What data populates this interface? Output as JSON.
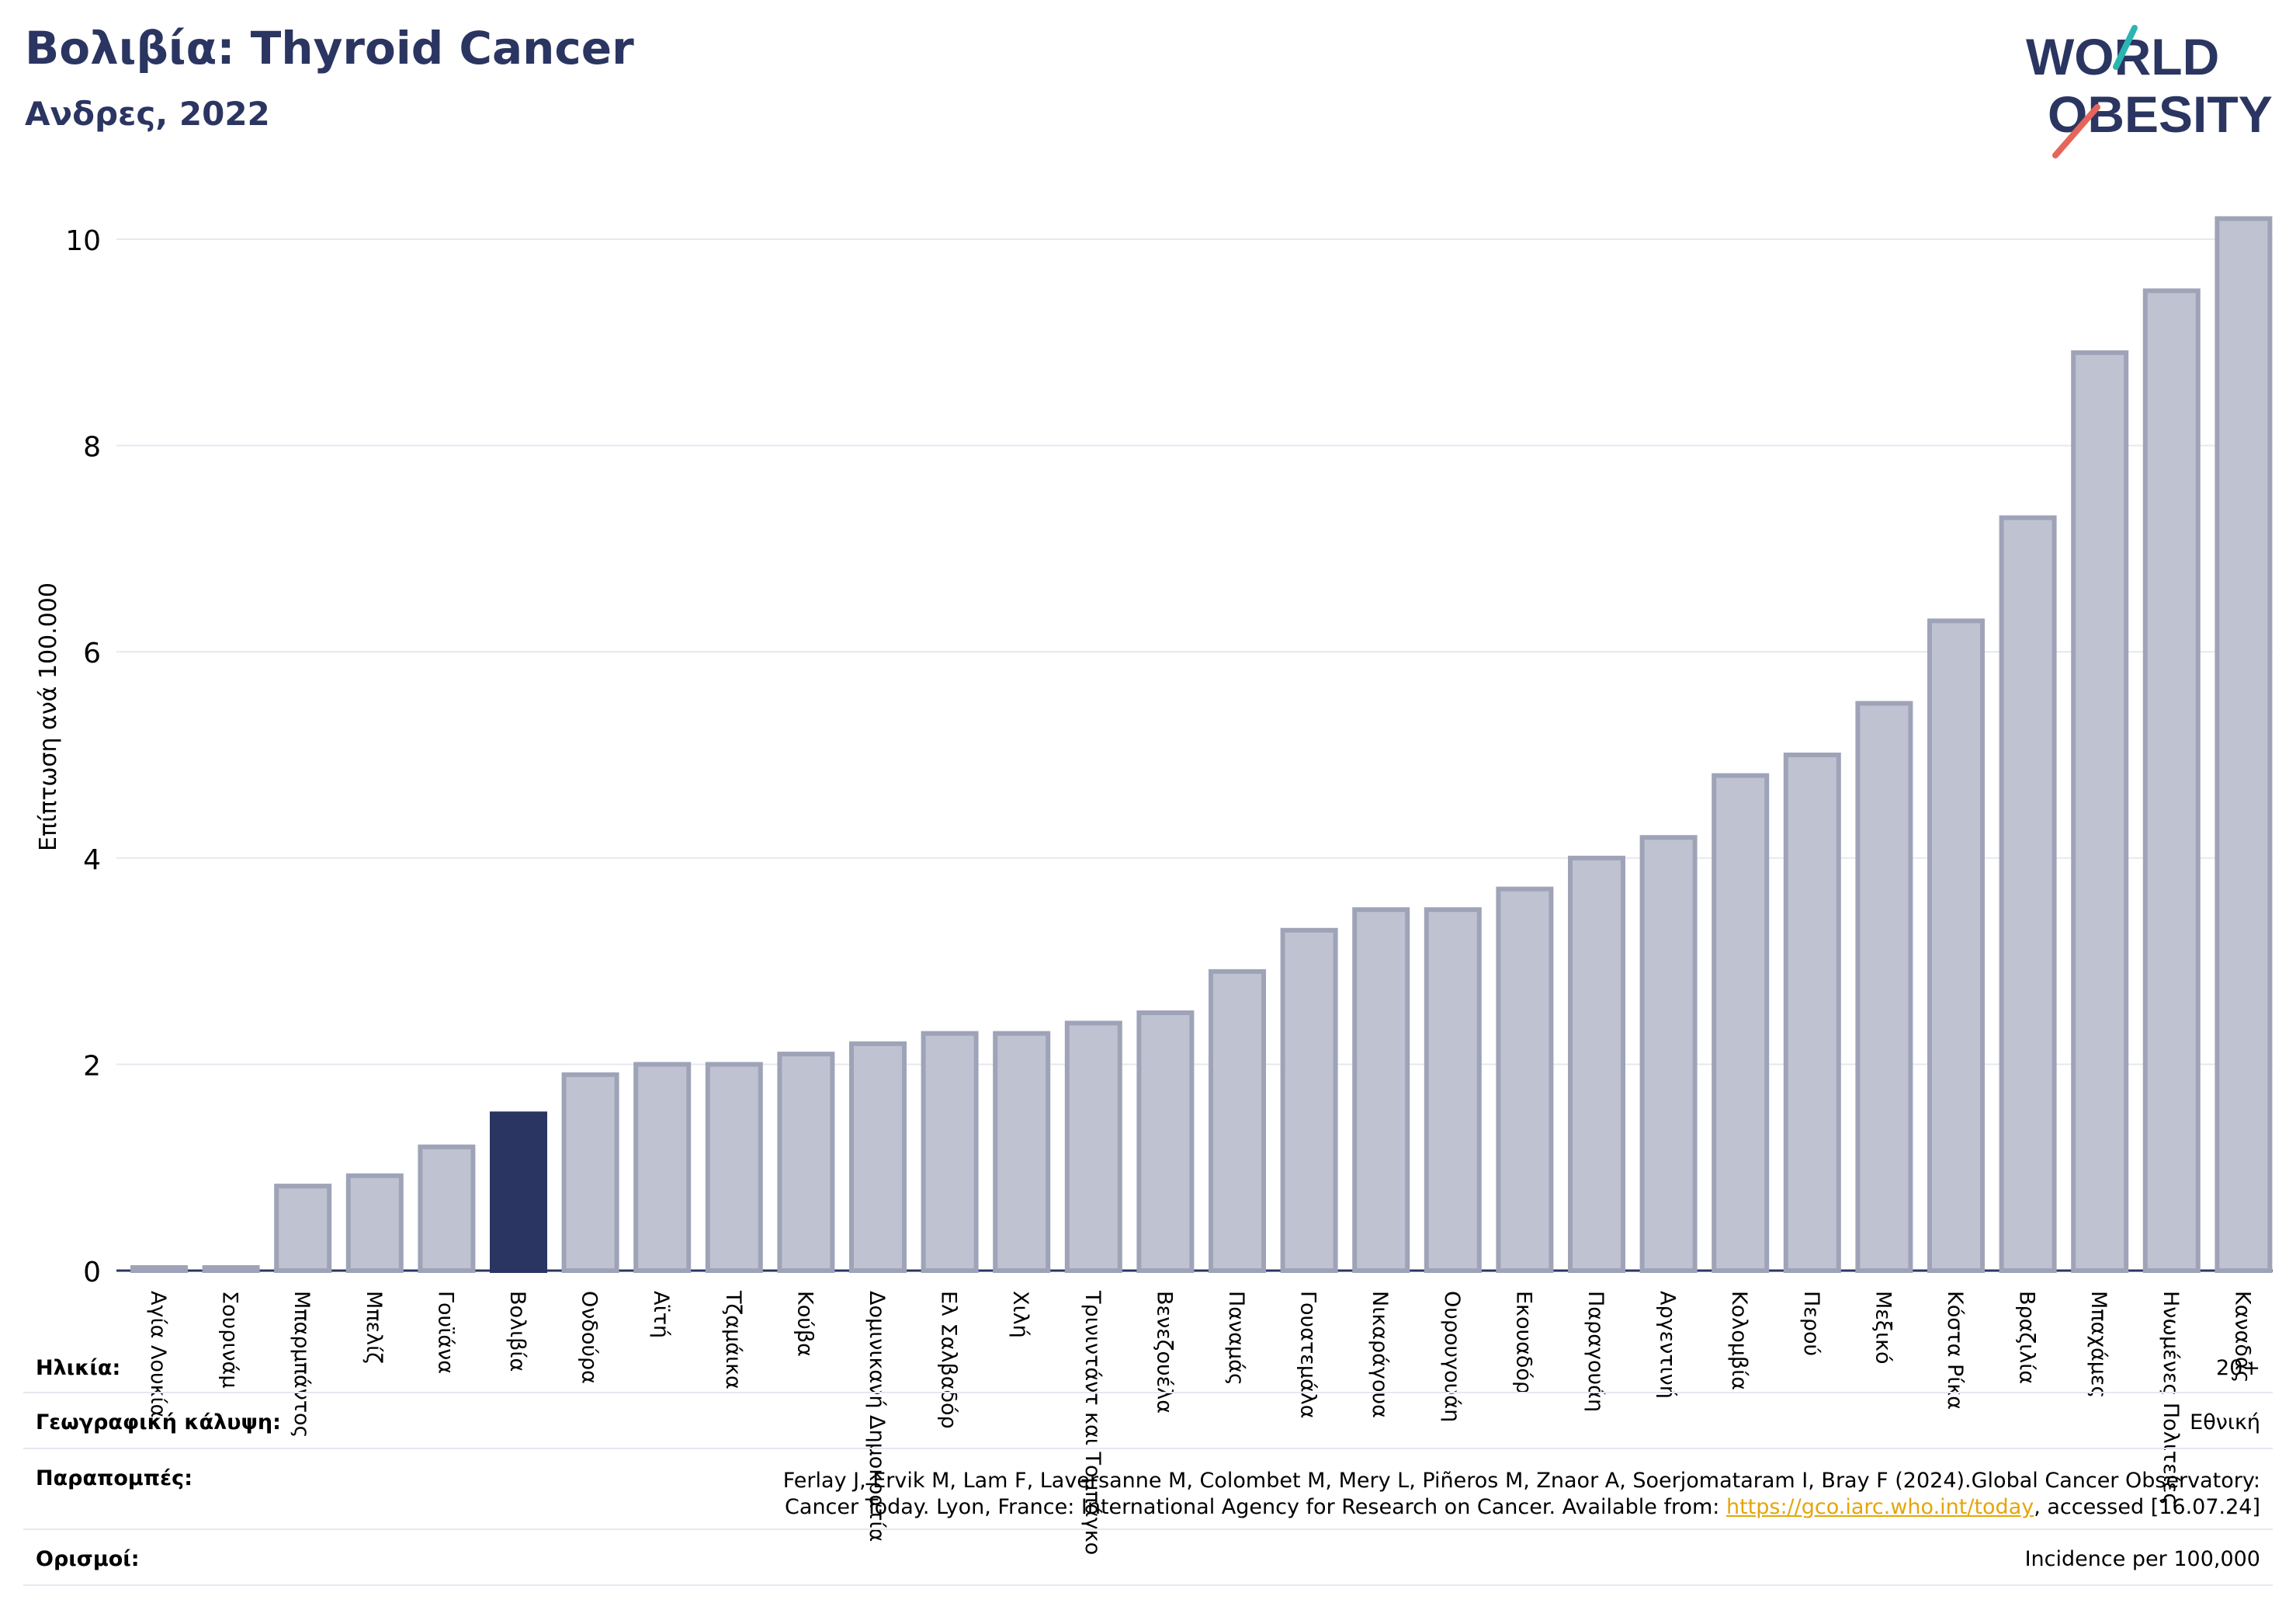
{
  "header": {
    "title": "Βολιβία: Thyroid Cancer",
    "subtitle": "Ανδρες, 2022",
    "logo_line1": "WORLD",
    "logo_line2": "OBESITY"
  },
  "colors": {
    "brand_navy": "#2b3561",
    "bar_default": "#bfc2d0",
    "bar_border": "#9ea3b8",
    "bar_highlight": "#2b3561",
    "logo_teal": "#2bb5b0",
    "logo_coral": "#e5655a",
    "link": "#e5a50a"
  },
  "chart_data": {
    "type": "bar",
    "ylabel": "Επίπτωση ανά 100.000",
    "ylim": [
      0,
      10.5
    ],
    "yticks": [
      0,
      2,
      4,
      6,
      8,
      10
    ],
    "grid": true,
    "highlight": "Βολιβία",
    "categories": [
      "Αγία Λουκία",
      "Σουρινάμ",
      "Μπαρμπάντος",
      "Μπελίζ",
      "Γουϊάνα",
      "Βολιβία",
      "Ονδούρα",
      "Αϊτή",
      "Τζαμάικα",
      "Κούβα",
      "Δομινικανή Δημοκρατία",
      "Ελ Σαλβαδόρ",
      "Χιλή",
      "Τρινιντάντ και Τομπάγκο",
      "Βενεζουέλα",
      "Παναμάς",
      "Γουατεμάλα",
      "Νικαράγουα",
      "Ουρουγουάη",
      "Εκουαδόρ",
      "Παραγουάη",
      "Αργεντινή",
      "Κολομβία",
      "Περού",
      "Μεξικό",
      "Κόστα Ρίκα",
      "Βραζιλία",
      "Μπαχάμες",
      "Ηνωμένες Πολιτείες",
      "Καναδάς"
    ],
    "values": [
      0.03,
      0.03,
      0.82,
      0.92,
      1.2,
      1.52,
      1.9,
      2.0,
      2.0,
      2.1,
      2.2,
      2.3,
      2.3,
      2.4,
      2.5,
      2.9,
      3.3,
      3.5,
      3.5,
      3.7,
      4.0,
      4.2,
      4.8,
      5.0,
      5.5,
      6.3,
      7.3,
      8.9,
      9.5,
      10.2
    ]
  },
  "meta": {
    "age_label": "Ηλικία:",
    "age_value": "20+",
    "coverage_label": "Γεωγραφική κάλυψη:",
    "coverage_value": "Εθνική",
    "refs_label": "Παραπομπές:",
    "refs_line1": "Ferlay J, Ervik M, Lam F, Laversanne M, Colombet M, Mery L, Piñeros M, Znaor A, Soerjomataram I, Bray F (2024).Global Cancer Observatory:",
    "refs_line2_pre": "Cancer Today. Lyon, France: International Agency for Research on Cancer. Available from: ",
    "refs_link": "https://gco.iarc.who.int/today",
    "refs_line2_post": ", accessed [16.07.24]",
    "defs_label": "Ορισμοί:",
    "defs_value": "Incidence per 100,000"
  }
}
